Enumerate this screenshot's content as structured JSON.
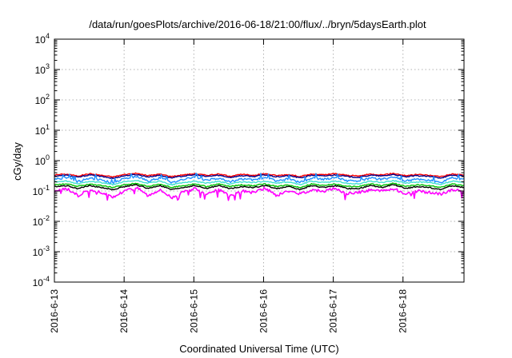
{
  "chart_data": {
    "type": "line",
    "title": "/data/run/goesPlots/archive/2016-06-18/21:00/flux/../bryn/5daysEarth.plot",
    "xlabel": "Coordinated Universal Time (UTC)",
    "ylabel": "cGy/day",
    "yscale": "log",
    "ylim": [
      0.0001,
      10000
    ],
    "y_ticks": [
      {
        "base": "10",
        "exp": "-4"
      },
      {
        "base": "10",
        "exp": "-3"
      },
      {
        "base": "10",
        "exp": "-2"
      },
      {
        "base": "10",
        "exp": "-1"
      },
      {
        "base": "10",
        "exp": "0"
      },
      {
        "base": "10",
        "exp": "1"
      },
      {
        "base": "10",
        "exp": "2"
      },
      {
        "base": "10",
        "exp": "3"
      },
      {
        "base": "10",
        "exp": "4"
      }
    ],
    "xlim": [
      "2016-06-13T00:00",
      "2016-06-18T21:00"
    ],
    "x_ticks": [
      "2016-6-13",
      "2016-6-14",
      "2016-6-15",
      "2016-6-16",
      "2016-6-17",
      "2016-6-18"
    ],
    "grid": true,
    "legend": "none",
    "series": [
      {
        "color": "#ff0000",
        "values": [
          0.34,
          0.36,
          0.31,
          0.37,
          0.33,
          0.29,
          0.35,
          0.38,
          0.32,
          0.36,
          0.3,
          0.34,
          0.37,
          0.33,
          0.36,
          0.31,
          0.35,
          0.33,
          0.37,
          0.32,
          0.35,
          0.3,
          0.36,
          0.34,
          0.37,
          0.33,
          0.31,
          0.36,
          0.34,
          0.38,
          0.32,
          0.35,
          0.33,
          0.3,
          0.36,
          0.34
        ]
      },
      {
        "color": "#00008b",
        "values": [
          0.31,
          0.33,
          0.28,
          0.34,
          0.3,
          0.26,
          0.32,
          0.35,
          0.29,
          0.33,
          0.27,
          0.31,
          0.34,
          0.3,
          0.33,
          0.28,
          0.32,
          0.3,
          0.34,
          0.29,
          0.32,
          0.27,
          0.33,
          0.31,
          0.34,
          0.3,
          0.28,
          0.33,
          0.31,
          0.35,
          0.29,
          0.32,
          0.3,
          0.27,
          0.33,
          0.31
        ]
      },
      {
        "color": "#1e90ff",
        "values": [
          0.24,
          0.28,
          0.2,
          0.27,
          0.23,
          0.18,
          0.26,
          0.3,
          0.21,
          0.27,
          0.19,
          0.24,
          0.28,
          0.22,
          0.27,
          0.2,
          0.25,
          0.23,
          0.28,
          0.21,
          0.25,
          0.19,
          0.27,
          0.24,
          0.28,
          0.22,
          0.2,
          0.27,
          0.24,
          0.29,
          0.21,
          0.25,
          0.23,
          0.19,
          0.27,
          0.24
        ]
      },
      {
        "color": "#40e0d0",
        "values": [
          0.2,
          0.21,
          0.17,
          0.21,
          0.19,
          0.16,
          0.2,
          0.22,
          0.18,
          0.21,
          0.16,
          0.19,
          0.21,
          0.18,
          0.21,
          0.17,
          0.2,
          0.19,
          0.21,
          0.18,
          0.2,
          0.16,
          0.21,
          0.19,
          0.21,
          0.18,
          0.17,
          0.21,
          0.19,
          0.22,
          0.18,
          0.2,
          0.19,
          0.16,
          0.21,
          0.19
        ]
      },
      {
        "color": "#00c000",
        "values": [
          0.16,
          0.17,
          0.14,
          0.17,
          0.15,
          0.13,
          0.16,
          0.18,
          0.14,
          0.17,
          0.13,
          0.15,
          0.17,
          0.14,
          0.17,
          0.14,
          0.16,
          0.15,
          0.17,
          0.14,
          0.16,
          0.13,
          0.17,
          0.15,
          0.17,
          0.14,
          0.14,
          0.17,
          0.15,
          0.18,
          0.14,
          0.16,
          0.15,
          0.13,
          0.17,
          0.15
        ]
      },
      {
        "color": "#000000",
        "values": [
          0.14,
          0.15,
          0.12,
          0.15,
          0.13,
          0.11,
          0.14,
          0.16,
          0.12,
          0.15,
          0.11,
          0.13,
          0.15,
          0.12,
          0.15,
          0.12,
          0.14,
          0.13,
          0.15,
          0.12,
          0.14,
          0.11,
          0.15,
          0.13,
          0.15,
          0.12,
          0.12,
          0.15,
          0.13,
          0.16,
          0.12,
          0.14,
          0.13,
          0.11,
          0.15,
          0.13
        ]
      },
      {
        "color": "#ff00ff",
        "values": [
          0.1,
          0.12,
          0.07,
          0.11,
          0.09,
          0.06,
          0.1,
          0.13,
          0.07,
          0.11,
          0.06,
          0.09,
          0.12,
          0.08,
          0.11,
          0.07,
          0.1,
          0.09,
          0.12,
          0.07,
          0.1,
          0.08,
          0.11,
          0.1,
          0.12,
          0.08,
          0.09,
          0.11,
          0.1,
          0.12,
          0.08,
          0.1,
          0.09,
          0.08,
          0.11,
          0.1
        ]
      }
    ]
  }
}
